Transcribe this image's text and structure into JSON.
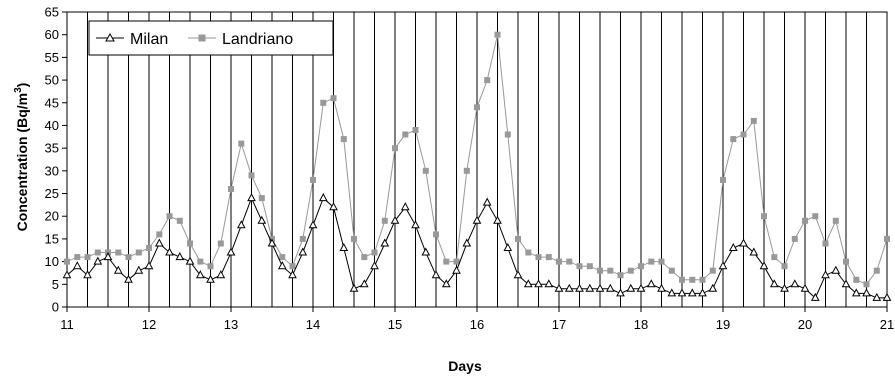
{
  "chart_data": {
    "type": "line",
    "title": "",
    "xlabel": "Days",
    "ylabel": "Concentration  (Bq/m",
    "ylabel_sup": "3",
    "ylabel_close": ")",
    "xlim": [
      11,
      21
    ],
    "ylim": [
      0,
      65
    ],
    "xticks": [
      11,
      12,
      13,
      14,
      15,
      16,
      17,
      18,
      19,
      20,
      21
    ],
    "yticks": [
      0,
      5,
      10,
      15,
      20,
      25,
      30,
      35,
      40,
      45,
      50,
      55,
      60,
      65
    ],
    "vertical_gridlines_every": 0.25,
    "legend_position": "top-left",
    "colors": {
      "Milan": "#000000",
      "Landriano": "#999999"
    },
    "markers": {
      "Milan": "open-triangle",
      "Landriano": "filled-square"
    },
    "series": [
      {
        "name": "Milan",
        "x": [
          11.0,
          11.125,
          11.25,
          11.375,
          11.5,
          11.625,
          11.75,
          11.875,
          12.0,
          12.125,
          12.25,
          12.375,
          12.5,
          12.625,
          12.75,
          12.875,
          13.0,
          13.125,
          13.25,
          13.375,
          13.5,
          13.625,
          13.75,
          13.875,
          14.0,
          14.125,
          14.25,
          14.375,
          14.5,
          14.625,
          14.75,
          14.875,
          15.0,
          15.125,
          15.25,
          15.375,
          15.5,
          15.625,
          15.75,
          15.875,
          16.0,
          16.125,
          16.25,
          16.375,
          16.5,
          16.625,
          16.75,
          16.875,
          17.0,
          17.125,
          17.25,
          17.375,
          17.5,
          17.625,
          17.75,
          17.875,
          18.0,
          18.125,
          18.25,
          18.375,
          18.5,
          18.625,
          18.75,
          18.875,
          19.0,
          19.125,
          19.25,
          19.375,
          19.5,
          19.625,
          19.75,
          19.875,
          20.0,
          20.125,
          20.25,
          20.375,
          20.5,
          20.625,
          20.75,
          20.875,
          21.0
        ],
        "values": [
          7,
          9,
          7,
          10,
          11,
          8,
          6,
          8,
          9,
          14,
          12,
          11,
          10,
          7,
          6,
          7,
          12,
          18,
          24,
          19,
          14,
          9,
          7,
          12,
          18,
          24,
          22,
          13,
          4,
          5,
          9,
          14,
          19,
          22,
          18,
          12,
          7,
          5,
          8,
          14,
          19,
          23,
          19,
          13,
          7,
          5,
          5,
          5,
          4,
          4,
          4,
          4,
          4,
          4,
          3,
          4,
          4,
          5,
          4,
          3,
          3,
          3,
          3,
          4,
          9,
          13,
          14,
          12,
          9,
          5,
          4,
          5,
          4,
          2,
          7,
          8,
          5,
          3,
          3,
          2,
          2
        ]
      },
      {
        "name": "Landriano",
        "x": [
          11.0,
          11.125,
          11.25,
          11.375,
          11.5,
          11.625,
          11.75,
          11.875,
          12.0,
          12.125,
          12.25,
          12.375,
          12.5,
          12.625,
          12.75,
          12.875,
          13.0,
          13.125,
          13.25,
          13.375,
          13.5,
          13.625,
          13.75,
          13.875,
          14.0,
          14.125,
          14.25,
          14.375,
          14.5,
          14.625,
          14.75,
          14.875,
          15.0,
          15.125,
          15.25,
          15.375,
          15.5,
          15.625,
          15.75,
          15.875,
          16.0,
          16.125,
          16.25,
          16.375,
          16.5,
          16.625,
          16.75,
          16.875,
          17.0,
          17.125,
          17.25,
          17.375,
          17.5,
          17.625,
          17.75,
          17.875,
          18.0,
          18.125,
          18.25,
          18.375,
          18.5,
          18.625,
          18.75,
          18.875,
          19.0,
          19.125,
          19.25,
          19.375,
          19.5,
          19.625,
          19.75,
          19.875,
          20.0,
          20.125,
          20.25,
          20.375,
          20.5,
          20.625,
          20.75,
          20.875,
          21.0
        ],
        "values": [
          10,
          11,
          11,
          12,
          12,
          12,
          11,
          12,
          13,
          16,
          20,
          19,
          14,
          10,
          9,
          14,
          26,
          36,
          29,
          24,
          15,
          11,
          9,
          15,
          28,
          45,
          46,
          37,
          15,
          11,
          12,
          19,
          35,
          38,
          39,
          30,
          16,
          10,
          10,
          30,
          44,
          50,
          60,
          38,
          15,
          12,
          11,
          11,
          10,
          10,
          9,
          9,
          8,
          8,
          7,
          8,
          9,
          10,
          10,
          8,
          6,
          6,
          6,
          8,
          28,
          37,
          38,
          41,
          20,
          11,
          9,
          15,
          19,
          20,
          14,
          19,
          10,
          6,
          5,
          8,
          15
        ]
      }
    ]
  }
}
